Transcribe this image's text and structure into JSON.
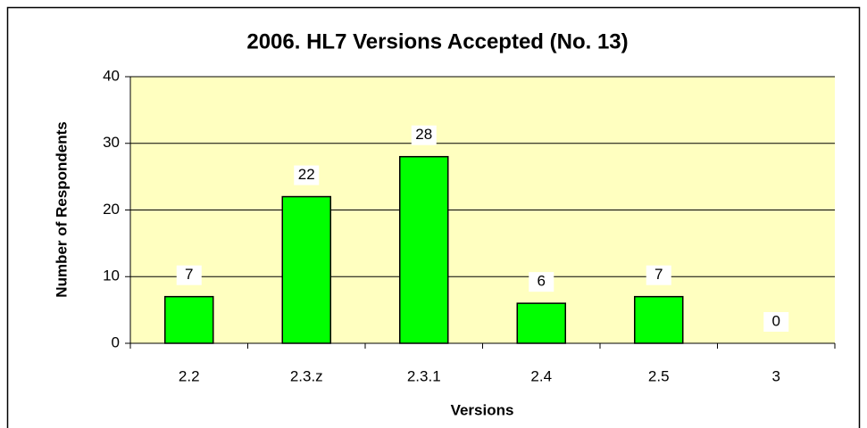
{
  "chart_data": {
    "type": "bar",
    "title": "2006. HL7 Versions Accepted (No. 13)",
    "x_label": "Versions",
    "y_label": "Number of Respondents",
    "categories": [
      "2.2",
      "2.3.z",
      "2.3.1",
      "2.4",
      "2.5",
      "3"
    ],
    "values": [
      7,
      22,
      28,
      6,
      7,
      0
    ],
    "color": "#00ff00",
    "ylim": [
      0,
      40
    ],
    "yticks": [
      0,
      10,
      20,
      30,
      40
    ],
    "grid": true
  }
}
